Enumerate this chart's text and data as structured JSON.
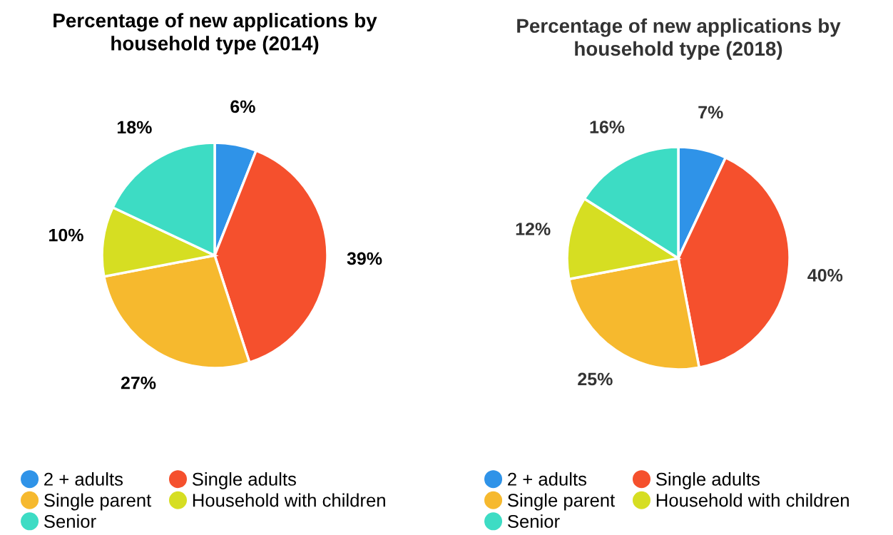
{
  "chart_data": [
    {
      "type": "pie",
      "title": "Percentage of new applications by household type (2014)",
      "categories": [
        "2 + adults",
        "Single adults",
        "Single parent",
        "Household with children",
        "Senior"
      ],
      "values": [
        6,
        39,
        27,
        10,
        18
      ],
      "colors": [
        "#2f93e8",
        "#f5502d",
        "#f6b92e",
        "#d6de22",
        "#3ddcc4"
      ],
      "value_labels": [
        "6%",
        "39%",
        "27%",
        "10%",
        "18%"
      ],
      "legend": "bottom"
    },
    {
      "type": "pie",
      "title": "Percentage of new applications by household type (2018)",
      "categories": [
        "2 + adults",
        "Single adults",
        "Single parent",
        "Household with children",
        "Senior"
      ],
      "values": [
        7,
        40,
        25,
        12,
        16
      ],
      "colors": [
        "#2f93e8",
        "#f5502d",
        "#f6b92e",
        "#d6de22",
        "#3ddcc4"
      ],
      "value_labels": [
        "7%",
        "40%",
        "25%",
        "12%",
        "16%"
      ],
      "legend": "bottom"
    }
  ]
}
